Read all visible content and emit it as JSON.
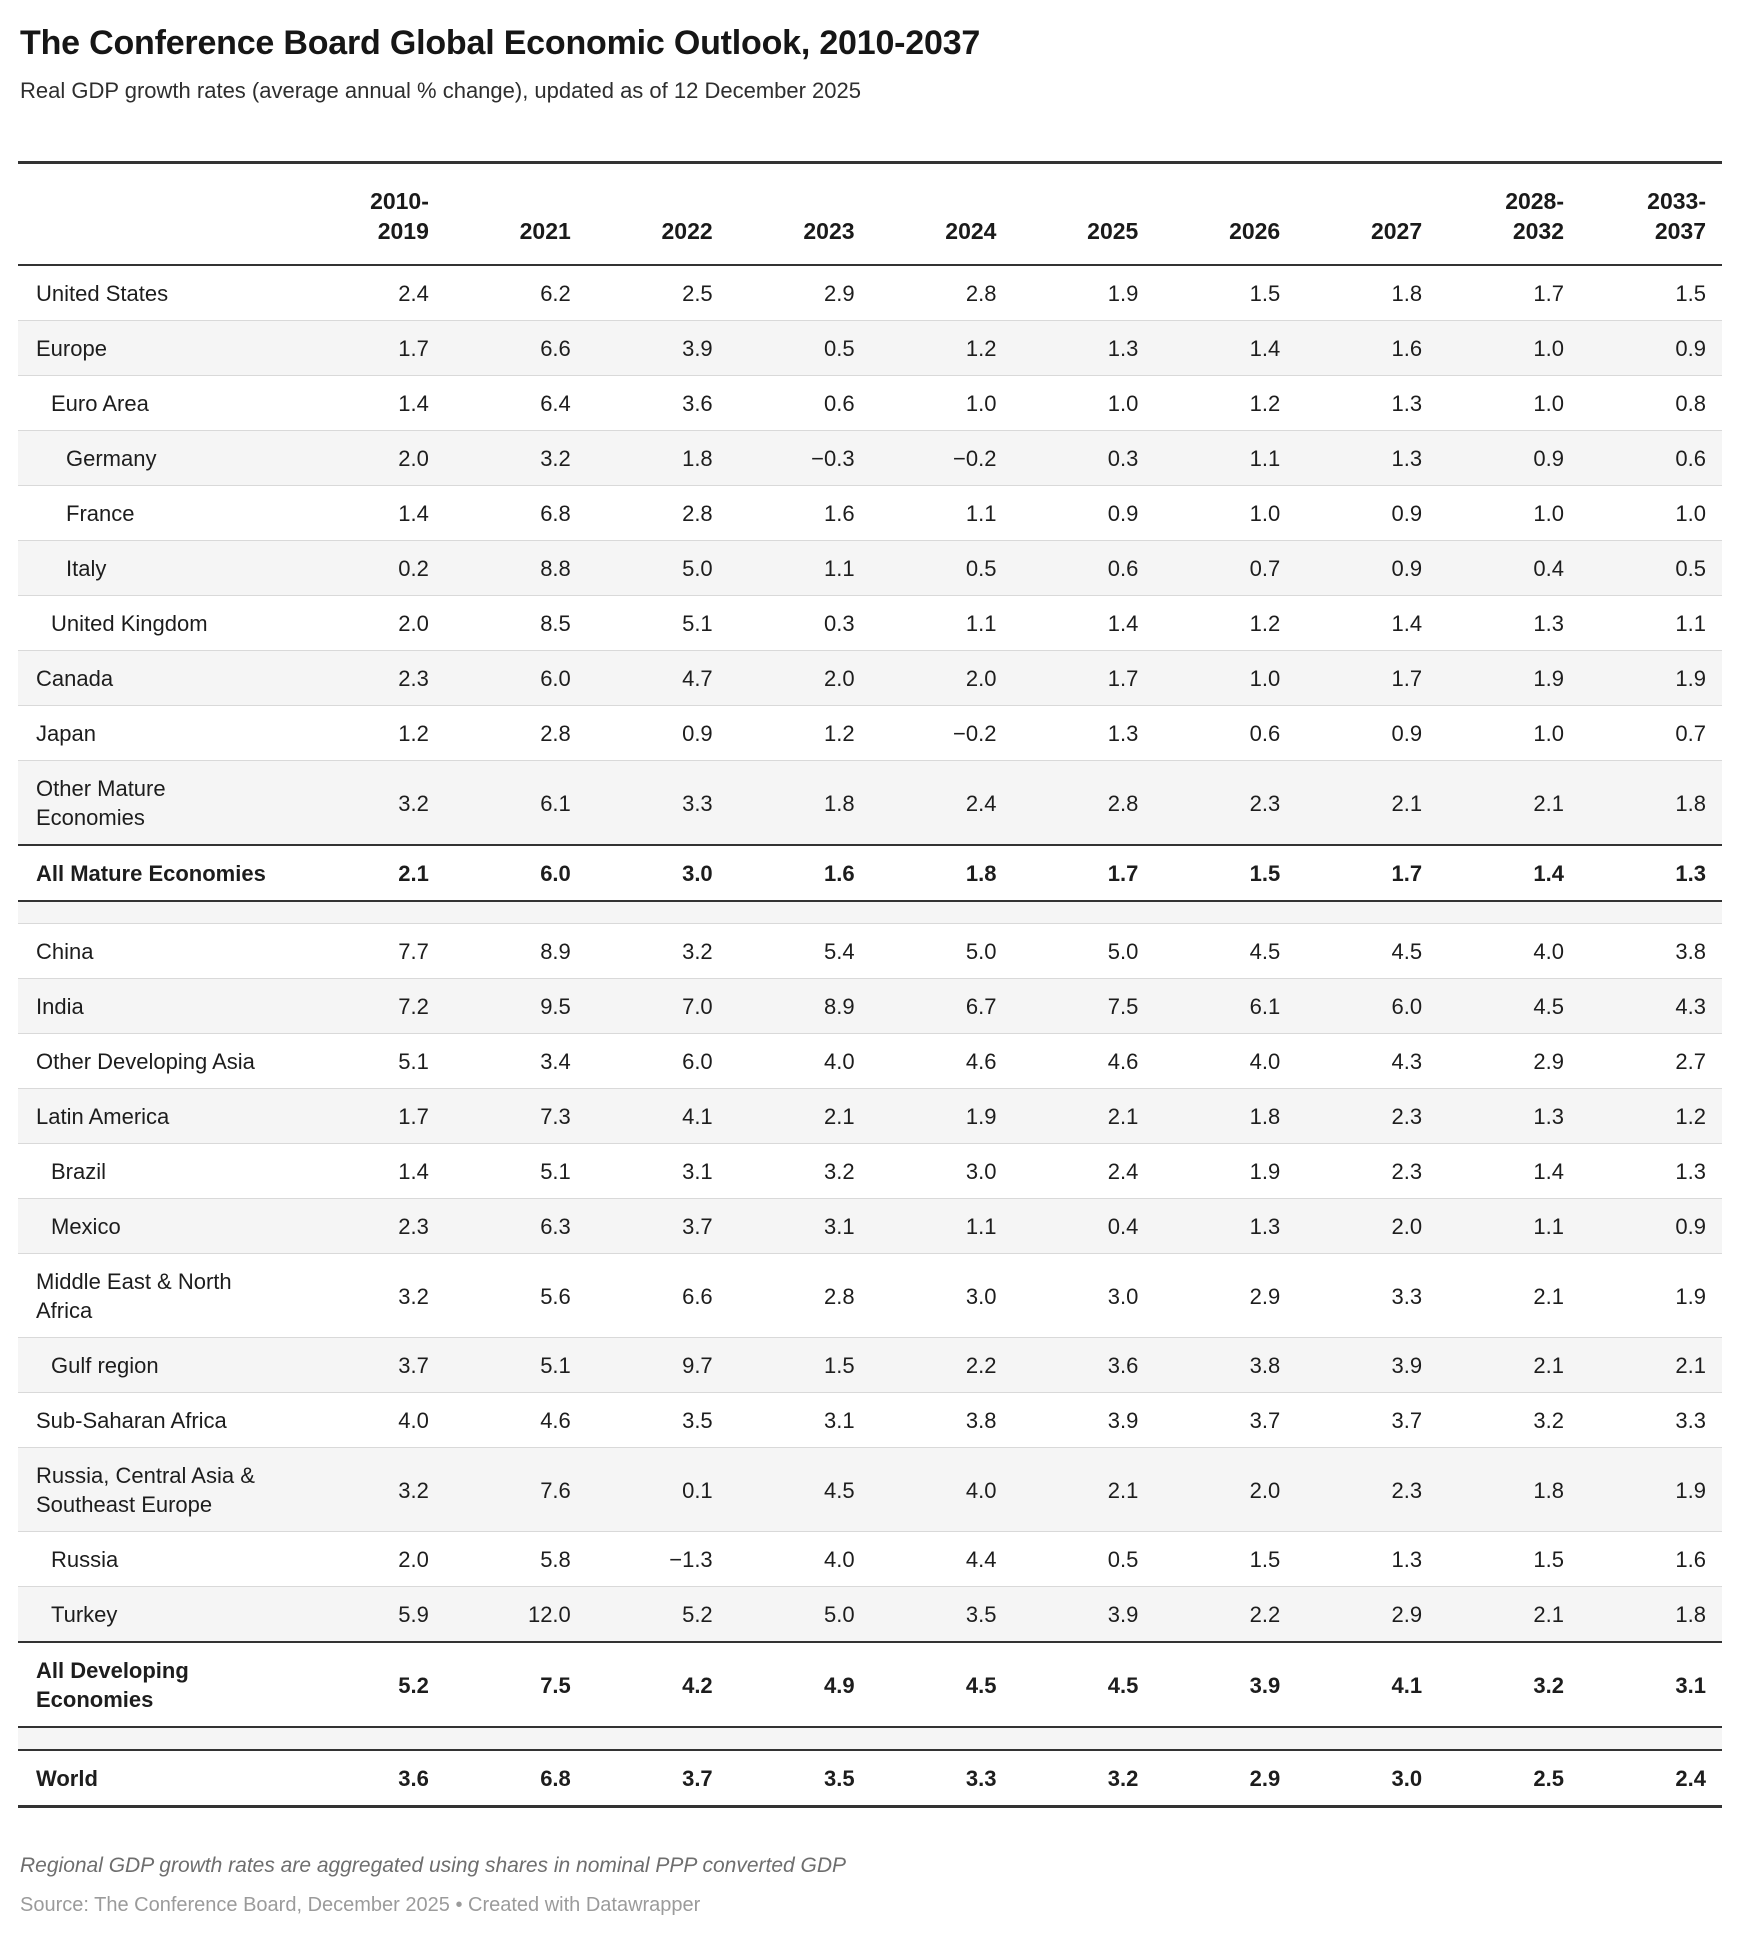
{
  "colors": {
    "rule_dark": "#333333",
    "row_shade": "#f5f5f5",
    "divider": "#d9d9d9",
    "text": "#1d1d1d",
    "notes_text": "#6e6e6e",
    "source_text": "#9b9b9b"
  },
  "chart_data": {
    "type": "table",
    "title": "The Conference Board Global Economic Outlook, 2010-2037",
    "subtitle": "Real GDP growth rates (average annual % change), updated as of 12 December 2025",
    "columns": [
      "2010-\n2019",
      "2021",
      "2022",
      "2023",
      "2024",
      "2025",
      "2026",
      "2027",
      "2028-\n2032",
      "2033-\n2037"
    ],
    "rows": [
      {
        "label": "United States",
        "indent": 0,
        "total": false,
        "values": [
          "2.4",
          "6.2",
          "2.5",
          "2.9",
          "2.8",
          "1.9",
          "1.5",
          "1.8",
          "1.7",
          "1.5"
        ]
      },
      {
        "label": "Europe",
        "indent": 0,
        "total": false,
        "values": [
          "1.7",
          "6.6",
          "3.9",
          "0.5",
          "1.2",
          "1.3",
          "1.4",
          "1.6",
          "1.0",
          "0.9"
        ]
      },
      {
        "label": "Euro Area",
        "indent": 1,
        "total": false,
        "values": [
          "1.4",
          "6.4",
          "3.6",
          "0.6",
          "1.0",
          "1.0",
          "1.2",
          "1.3",
          "1.0",
          "0.8"
        ]
      },
      {
        "label": "Germany",
        "indent": 2,
        "total": false,
        "values": [
          "2.0",
          "3.2",
          "1.8",
          "−0.3",
          "−0.2",
          "0.3",
          "1.1",
          "1.3",
          "0.9",
          "0.6"
        ]
      },
      {
        "label": "France",
        "indent": 2,
        "total": false,
        "values": [
          "1.4",
          "6.8",
          "2.8",
          "1.6",
          "1.1",
          "0.9",
          "1.0",
          "0.9",
          "1.0",
          "1.0"
        ]
      },
      {
        "label": "Italy",
        "indent": 2,
        "total": false,
        "values": [
          "0.2",
          "8.8",
          "5.0",
          "1.1",
          "0.5",
          "0.6",
          "0.7",
          "0.9",
          "0.4",
          "0.5"
        ]
      },
      {
        "label": "United Kingdom",
        "indent": 1,
        "total": false,
        "values": [
          "2.0",
          "8.5",
          "5.1",
          "0.3",
          "1.1",
          "1.4",
          "1.2",
          "1.4",
          "1.3",
          "1.1"
        ]
      },
      {
        "label": "Canada",
        "indent": 0,
        "total": false,
        "values": [
          "2.3",
          "6.0",
          "4.7",
          "2.0",
          "2.0",
          "1.7",
          "1.0",
          "1.7",
          "1.9",
          "1.9"
        ]
      },
      {
        "label": "Japan",
        "indent": 0,
        "total": false,
        "values": [
          "1.2",
          "2.8",
          "0.9",
          "1.2",
          "−0.2",
          "1.3",
          "0.6",
          "0.9",
          "1.0",
          "0.7"
        ]
      },
      {
        "label": "Other Mature\nEconomies",
        "indent": 0,
        "total": false,
        "values": [
          "3.2",
          "6.1",
          "3.3",
          "1.8",
          "2.4",
          "2.8",
          "2.3",
          "2.1",
          "2.1",
          "1.8"
        ]
      },
      {
        "label": "All Mature Economies",
        "indent": 0,
        "total": true,
        "values": [
          "2.1",
          "6.0",
          "3.0",
          "1.6",
          "1.8",
          "1.7",
          "1.5",
          "1.7",
          "1.4",
          "1.3"
        ]
      },
      {
        "spacer": true
      },
      {
        "label": "China",
        "indent": 0,
        "total": false,
        "values": [
          "7.7",
          "8.9",
          "3.2",
          "5.4",
          "5.0",
          "5.0",
          "4.5",
          "4.5",
          "4.0",
          "3.8"
        ]
      },
      {
        "label": "India",
        "indent": 0,
        "total": false,
        "values": [
          "7.2",
          "9.5",
          "7.0",
          "8.9",
          "6.7",
          "7.5",
          "6.1",
          "6.0",
          "4.5",
          "4.3"
        ]
      },
      {
        "label": "Other Developing Asia",
        "indent": 0,
        "total": false,
        "values": [
          "5.1",
          "3.4",
          "6.0",
          "4.0",
          "4.6",
          "4.6",
          "4.0",
          "4.3",
          "2.9",
          "2.7"
        ]
      },
      {
        "label": "Latin America",
        "indent": 0,
        "total": false,
        "values": [
          "1.7",
          "7.3",
          "4.1",
          "2.1",
          "1.9",
          "2.1",
          "1.8",
          "2.3",
          "1.3",
          "1.2"
        ]
      },
      {
        "label": "Brazil",
        "indent": 1,
        "total": false,
        "values": [
          "1.4",
          "5.1",
          "3.1",
          "3.2",
          "3.0",
          "2.4",
          "1.9",
          "2.3",
          "1.4",
          "1.3"
        ]
      },
      {
        "label": "Mexico",
        "indent": 1,
        "total": false,
        "values": [
          "2.3",
          "6.3",
          "3.7",
          "3.1",
          "1.1",
          "0.4",
          "1.3",
          "2.0",
          "1.1",
          "0.9"
        ]
      },
      {
        "label": "Middle East & North\nAfrica",
        "indent": 0,
        "total": false,
        "values": [
          "3.2",
          "5.6",
          "6.6",
          "2.8",
          "3.0",
          "3.0",
          "2.9",
          "3.3",
          "2.1",
          "1.9"
        ]
      },
      {
        "label": "Gulf region",
        "indent": 1,
        "total": false,
        "values": [
          "3.7",
          "5.1",
          "9.7",
          "1.5",
          "2.2",
          "3.6",
          "3.8",
          "3.9",
          "2.1",
          "2.1"
        ]
      },
      {
        "label": "Sub-Saharan Africa",
        "indent": 0,
        "total": false,
        "values": [
          "4.0",
          "4.6",
          "3.5",
          "3.1",
          "3.8",
          "3.9",
          "3.7",
          "3.7",
          "3.2",
          "3.3"
        ]
      },
      {
        "label": "Russia, Central Asia &\nSoutheast Europe",
        "indent": 0,
        "total": false,
        "values": [
          "3.2",
          "7.6",
          "0.1",
          "4.5",
          "4.0",
          "2.1",
          "2.0",
          "2.3",
          "1.8",
          "1.9"
        ]
      },
      {
        "label": "Russia",
        "indent": 1,
        "total": false,
        "values": [
          "2.0",
          "5.8",
          "−1.3",
          "4.0",
          "4.4",
          "0.5",
          "1.5",
          "1.3",
          "1.5",
          "1.6"
        ]
      },
      {
        "label": "Turkey",
        "indent": 1,
        "total": false,
        "values": [
          "5.9",
          "12.0",
          "5.2",
          "5.0",
          "3.5",
          "3.9",
          "2.2",
          "2.9",
          "2.1",
          "1.8"
        ]
      },
      {
        "label": "All Developing\nEconomies",
        "indent": 0,
        "total": true,
        "values": [
          "5.2",
          "7.5",
          "4.2",
          "4.9",
          "4.5",
          "4.5",
          "3.9",
          "4.1",
          "3.2",
          "3.1"
        ]
      },
      {
        "spacer": true
      },
      {
        "label": "World",
        "indent": 0,
        "total": true,
        "values": [
          "3.6",
          "6.8",
          "3.7",
          "3.5",
          "3.3",
          "3.2",
          "2.9",
          "3.0",
          "2.5",
          "2.4"
        ]
      }
    ],
    "notes": "Regional GDP growth rates are aggregated using shares in nominal PPP converted GDP",
    "source": "Source: The Conference Board, December 2025 • Created with Datawrapper"
  }
}
